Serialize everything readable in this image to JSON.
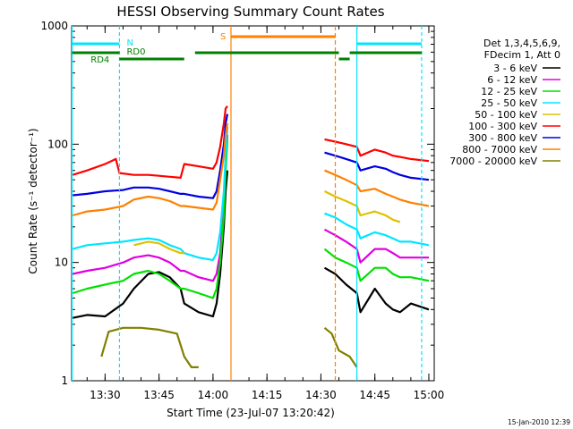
{
  "chart_data": {
    "type": "line",
    "title": "HESSI Observing Summary Count Rates",
    "xlabel": "Start Time (23-Jul-07 13:20:42)",
    "ylabel": "Count Rate (s⁻¹ detector⁻¹)",
    "x_ticks": [
      "13:30",
      "13:45",
      "14:00",
      "14:15",
      "14:30",
      "14:45",
      "15:00"
    ],
    "y_ticks": [
      "1",
      "10",
      "100",
      "1000"
    ],
    "xlim": [
      "13:20:42",
      "15:01:30"
    ],
    "ylim": [
      1,
      1000
    ],
    "y_scale": "log",
    "grid": false,
    "legend_position": "right",
    "legend_header": [
      "Det 1,3,4,5,6,9,",
      "FDecim 1, Att 0"
    ],
    "timestamp": "15-Jan-2010 12:39",
    "flags": [
      {
        "label": "N",
        "color": "#00e5ff"
      },
      {
        "label": "RD0",
        "color": "#008000"
      },
      {
        "label": "RD4",
        "color": "#008000"
      },
      {
        "label": "S",
        "color": "#ff8000"
      }
    ],
    "series": [
      {
        "name": "3 - 6 keV",
        "color": "#000000",
        "points": [
          [
            "13:21",
            3.4
          ],
          [
            "13:25",
            3.6
          ],
          [
            "13:30",
            3.5
          ],
          [
            "13:35",
            4.5
          ],
          [
            "13:38",
            6
          ],
          [
            "13:42",
            8
          ],
          [
            "13:45",
            8.3
          ],
          [
            "13:48",
            7.5
          ],
          [
            "13:51",
            6
          ],
          [
            "13:52",
            4.5
          ],
          [
            "13:56",
            3.8
          ],
          [
            "14:00",
            3.5
          ],
          [
            "14:01",
            4.5
          ],
          [
            "14:02",
            8
          ],
          [
            "14:03",
            20
          ],
          [
            "14:03:30",
            40
          ],
          [
            "14:04",
            60
          ]
        ],
        "points_b": [
          [
            "14:31",
            9
          ],
          [
            "14:34",
            8
          ],
          [
            "14:37",
            6.5
          ],
          [
            "14:40",
            5.5
          ],
          [
            "14:41",
            3.8
          ],
          [
            "14:45",
            6
          ],
          [
            "14:48",
            4.5
          ],
          [
            "14:50",
            4
          ],
          [
            "14:52",
            3.8
          ],
          [
            "14:55",
            4.5
          ],
          [
            "15:00",
            4
          ]
        ]
      },
      {
        "name": "6 - 12 keV",
        "color": "#e000e0",
        "points": [
          [
            "13:21",
            8
          ],
          [
            "13:25",
            8.5
          ],
          [
            "13:30",
            9
          ],
          [
            "13:35",
            10
          ],
          [
            "13:38",
            11
          ],
          [
            "13:42",
            11.5
          ],
          [
            "13:45",
            11
          ],
          [
            "13:48",
            10
          ],
          [
            "13:51",
            8.5
          ],
          [
            "13:52",
            8.5
          ],
          [
            "13:56",
            7.5
          ],
          [
            "14:00",
            7
          ],
          [
            "14:01",
            8
          ],
          [
            "14:02",
            12
          ],
          [
            "14:03",
            30
          ],
          [
            "14:03:30",
            70
          ],
          [
            "14:04",
            120
          ]
        ],
        "points_b": [
          [
            "14:31",
            19
          ],
          [
            "14:34",
            17
          ],
          [
            "14:37",
            15
          ],
          [
            "14:40",
            13
          ],
          [
            "14:41",
            10
          ],
          [
            "14:45",
            13
          ],
          [
            "14:48",
            13
          ],
          [
            "14:50",
            12
          ],
          [
            "14:52",
            11
          ],
          [
            "14:55",
            11
          ],
          [
            "15:00",
            11
          ]
        ]
      },
      {
        "name": "12 - 25 keV",
        "color": "#00e000",
        "points": [
          [
            "13:21",
            5.5
          ],
          [
            "13:25",
            6
          ],
          [
            "13:30",
            6.5
          ],
          [
            "13:35",
            7
          ],
          [
            "13:38",
            8
          ],
          [
            "13:42",
            8.5
          ],
          [
            "13:45",
            8
          ],
          [
            "13:48",
            7
          ],
          [
            "13:51",
            6
          ],
          [
            "13:52",
            6
          ],
          [
            "13:56",
            5.5
          ],
          [
            "14:00",
            5
          ],
          [
            "14:01",
            6
          ],
          [
            "14:02",
            10
          ],
          [
            "14:03",
            25
          ],
          [
            "14:03:30",
            60
          ],
          [
            "14:04",
            110
          ]
        ],
        "points_b": [
          [
            "14:31",
            13
          ],
          [
            "14:34",
            11
          ],
          [
            "14:37",
            10
          ],
          [
            "14:40",
            9
          ],
          [
            "14:41",
            7
          ],
          [
            "14:45",
            9
          ],
          [
            "14:48",
            9
          ],
          [
            "14:50",
            8
          ],
          [
            "14:52",
            7.5
          ],
          [
            "14:55",
            7.5
          ],
          [
            "15:00",
            7
          ]
        ]
      },
      {
        "name": "25 - 50 keV",
        "color": "#00e5ff",
        "points": [
          [
            "13:21",
            13
          ],
          [
            "13:25",
            14
          ],
          [
            "13:30",
            14.5
          ],
          [
            "13:35",
            15
          ],
          [
            "13:38",
            15.5
          ],
          [
            "13:42",
            16
          ],
          [
            "13:45",
            15.5
          ],
          [
            "13:48",
            14
          ],
          [
            "13:51",
            13
          ],
          [
            "13:52",
            12
          ],
          [
            "13:56",
            11
          ],
          [
            "14:00",
            10.5
          ],
          [
            "14:01",
            12
          ],
          [
            "14:02",
            18
          ],
          [
            "14:03",
            40
          ],
          [
            "14:03:30",
            80
          ],
          [
            "14:04",
            140
          ]
        ],
        "points_b": [
          [
            "14:31",
            26
          ],
          [
            "14:34",
            24
          ],
          [
            "14:37",
            21
          ],
          [
            "14:40",
            19
          ],
          [
            "14:41",
            16
          ],
          [
            "14:45",
            18
          ],
          [
            "14:48",
            17
          ],
          [
            "14:50",
            16
          ],
          [
            "14:52",
            15
          ],
          [
            "14:55",
            15
          ],
          [
            "15:00",
            14
          ]
        ]
      },
      {
        "name": "50 - 100 keV",
        "color": "#e0c000",
        "points": [
          [
            "13:21",
            null
          ],
          [
            "13:38",
            14
          ],
          [
            "13:42",
            15
          ],
          [
            "13:45",
            14.5
          ],
          [
            "13:48",
            13
          ],
          [
            "13:51",
            12
          ],
          [
            "13:52",
            12
          ]
        ],
        "points_b": [
          [
            "14:31",
            40
          ],
          [
            "14:34",
            36
          ],
          [
            "14:37",
            33
          ],
          [
            "14:40",
            30
          ],
          [
            "14:41",
            25
          ],
          [
            "14:45",
            27
          ],
          [
            "14:48",
            25
          ],
          [
            "14:50",
            23
          ],
          [
            "14:52",
            22
          ]
        ]
      },
      {
        "name": "100 - 300 keV",
        "color": "#ff0000",
        "points": [
          [
            "13:21",
            55
          ],
          [
            "13:25",
            60
          ],
          [
            "13:30",
            68
          ],
          [
            "13:33",
            75
          ],
          [
            "13:34",
            57
          ],
          [
            "13:38",
            55
          ],
          [
            "13:42",
            55
          ],
          [
            "13:45",
            54
          ],
          [
            "13:48",
            53
          ],
          [
            "13:51",
            52
          ],
          [
            "13:52",
            68
          ],
          [
            "13:56",
            65
          ],
          [
            "14:00",
            62
          ],
          [
            "14:01",
            70
          ],
          [
            "14:02",
            95
          ],
          [
            "14:03",
            150
          ],
          [
            "14:03:30",
            200
          ],
          [
            "14:04",
            210
          ]
        ],
        "points_b": [
          [
            "14:31",
            110
          ],
          [
            "14:34",
            105
          ],
          [
            "14:37",
            100
          ],
          [
            "14:40",
            95
          ],
          [
            "14:41",
            80
          ],
          [
            "14:45",
            90
          ],
          [
            "14:48",
            85
          ],
          [
            "14:50",
            80
          ],
          [
            "14:52",
            78
          ],
          [
            "14:55",
            75
          ],
          [
            "15:00",
            72
          ]
        ]
      },
      {
        "name": "300 - 800 keV",
        "color": "#0000e0",
        "points": [
          [
            "13:21",
            37
          ],
          [
            "13:25",
            38
          ],
          [
            "13:30",
            40
          ],
          [
            "13:35",
            41
          ],
          [
            "13:38",
            43
          ],
          [
            "13:42",
            43
          ],
          [
            "13:45",
            42
          ],
          [
            "13:48",
            40
          ],
          [
            "13:51",
            38
          ],
          [
            "13:52",
            38
          ],
          [
            "13:56",
            36
          ],
          [
            "14:00",
            35
          ],
          [
            "14:01",
            40
          ],
          [
            "14:02",
            60
          ],
          [
            "14:03",
            100
          ],
          [
            "14:03:30",
            150
          ],
          [
            "14:04",
            180
          ]
        ],
        "points_b": [
          [
            "14:31",
            85
          ],
          [
            "14:34",
            80
          ],
          [
            "14:37",
            75
          ],
          [
            "14:40",
            70
          ],
          [
            "14:41",
            60
          ],
          [
            "14:45",
            65
          ],
          [
            "14:48",
            62
          ],
          [
            "14:50",
            58
          ],
          [
            "14:52",
            55
          ],
          [
            "14:55",
            52
          ],
          [
            "15:00",
            50
          ]
        ]
      },
      {
        "name": "800 - 7000 keV",
        "color": "#ff8000",
        "points": [
          [
            "13:21",
            25
          ],
          [
            "13:25",
            27
          ],
          [
            "13:30",
            28
          ],
          [
            "13:35",
            30
          ],
          [
            "13:38",
            34
          ],
          [
            "13:42",
            36
          ],
          [
            "13:45",
            35
          ],
          [
            "13:48",
            33
          ],
          [
            "13:51",
            30
          ],
          [
            "13:52",
            30
          ],
          [
            "13:56",
            29
          ],
          [
            "14:00",
            28
          ],
          [
            "14:01",
            32
          ],
          [
            "14:02",
            50
          ],
          [
            "14:03",
            80
          ],
          [
            "14:03:30",
            120
          ],
          [
            "14:04",
            150
          ]
        ],
        "points_b": [
          [
            "14:31",
            60
          ],
          [
            "14:34",
            55
          ],
          [
            "14:37",
            50
          ],
          [
            "14:40",
            45
          ],
          [
            "14:41",
            40
          ],
          [
            "14:45",
            42
          ],
          [
            "14:48",
            38
          ],
          [
            "14:50",
            36
          ],
          [
            "14:52",
            34
          ],
          [
            "14:55",
            32
          ],
          [
            "15:00",
            30
          ]
        ]
      },
      {
        "name": "7000 - 20000 keV",
        "color": "#808000",
        "points": [
          [
            "13:29",
            1.6
          ],
          [
            "13:31",
            2.6
          ],
          [
            "13:35",
            2.8
          ],
          [
            "13:40",
            2.8
          ],
          [
            "13:45",
            2.7
          ],
          [
            "13:50",
            2.5
          ],
          [
            "13:52",
            1.6
          ],
          [
            "13:54",
            1.3
          ],
          [
            "13:56",
            1.3
          ]
        ],
        "points_b": [
          [
            "14:31",
            2.8
          ],
          [
            "14:33",
            2.5
          ],
          [
            "14:35",
            1.8
          ],
          [
            "14:38",
            1.6
          ],
          [
            "14:40",
            1.3
          ]
        ]
      }
    ]
  }
}
